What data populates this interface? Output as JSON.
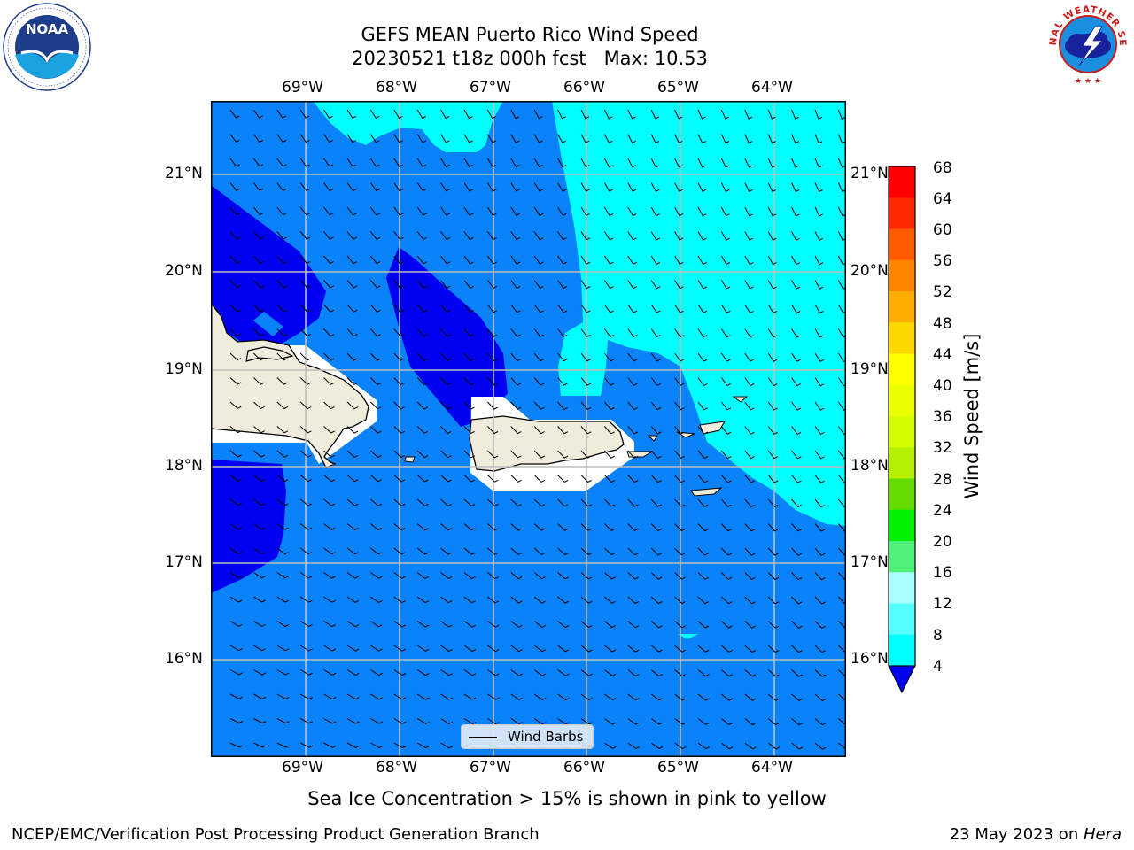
{
  "title": {
    "line1": "GEFS MEAN Puerto Rico Wind Speed",
    "line2": "20230521 t18z 000h fcst   Max: 10.53"
  },
  "logos": {
    "left": {
      "icon": "noaa-logo",
      "text": "NOAA",
      "ring_text": "NATIONAL OCEANIC AND ATMOSPHERIC ADMINISTRATION · U.S. DEPARTMENT OF COMMERCE"
    },
    "right": {
      "icon": "nws-logo",
      "ring_text": "NATIONAL WEATHER SERVICE"
    }
  },
  "map": {
    "lon_labels": [
      "69°W",
      "68°W",
      "67°W",
      "66°W",
      "65°W",
      "64°W"
    ],
    "lat_labels": [
      "21°N",
      "20°N",
      "19°N",
      "18°N",
      "17°N",
      "16°N"
    ],
    "legend_label": "Wind Barbs",
    "colors": {
      "ocean_4_8": "#0a82fa",
      "cyan_8_12": "#00ffff",
      "below_4": "#0000f0",
      "land": "#efecdc",
      "grid": "#bdbdbd"
    }
  },
  "colorbar": {
    "label": "Wind Speed [m/s]",
    "ticks": [
      "68",
      "64",
      "60",
      "56",
      "52",
      "48",
      "44",
      "40",
      "36",
      "32",
      "28",
      "24",
      "20",
      "16",
      "12",
      "8",
      "4"
    ],
    "colors": [
      "#ff0000",
      "#ff2a00",
      "#ff5a00",
      "#ff8400",
      "#ffae00",
      "#ffd800",
      "#ffff00",
      "#eaff00",
      "#d2ff00",
      "#b4f000",
      "#64dc00",
      "#00f000",
      "#50f07a",
      "#aaffff",
      "#55ffff",
      "#00ffff",
      "#0a82fa"
    ],
    "extend_color": "#0000f0"
  },
  "note": "Sea Ice Concentration > 15% is shown in pink to yellow",
  "footer": {
    "left": "NCEP/EMC/Verification Post Processing Product Generation Branch",
    "right_prefix": "23 May 2023 on ",
    "right_host": "Hera"
  }
}
